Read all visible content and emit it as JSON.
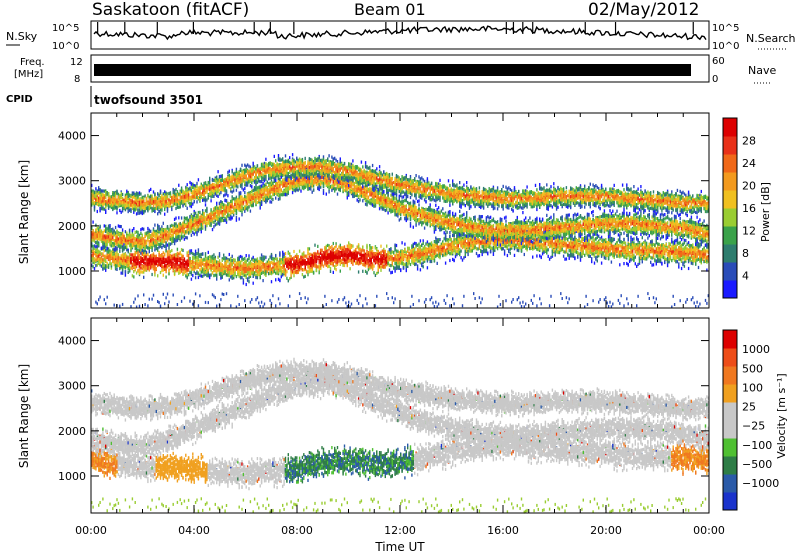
{
  "header": {
    "station_title": "Saskatoon (fitACF)",
    "beam": "Beam 01",
    "date": "02/May/2012"
  },
  "top_panels": {
    "nsky_label": "N.Sky",
    "nsky_ticks": [
      "10^5",
      "10^0"
    ],
    "nsearch_label": "N.Search",
    "nsearch_ticks": [
      "10^5",
      "10^0"
    ],
    "freq_label_1": "Freq.",
    "freq_label_2": "[MHz]",
    "freq_ticks": [
      "12",
      "8"
    ],
    "nave_label": "Nave",
    "nave_ticks": [
      "60",
      "0"
    ],
    "cpid_label": "CPID",
    "cpid_value": "twofsound 3501"
  },
  "chart_data": [
    {
      "type": "heatmap",
      "name": "power_panel",
      "ylabel": "Slant Range [km]",
      "xlabel": "",
      "y_ticks": [
        "1000",
        "2000",
        "3000",
        "4000"
      ],
      "ylim": [
        180,
        4500
      ],
      "colorbar": {
        "label": "Power [dB]",
        "ticks": [
          "4",
          "8",
          "12",
          "16",
          "20",
          "24",
          "28"
        ],
        "colors": [
          "#1a1aff",
          "#2a4cb8",
          "#2e7d6e",
          "#3aa24a",
          "#9acd32",
          "#f0c020",
          "#f39a1e",
          "#f06818",
          "#e83018",
          "#dd0000"
        ]
      },
      "bands": [
        {
          "label": "band_low",
          "x_start_h": 0.0,
          "x_end_h": 24.0,
          "center_km": [
            1350,
            1250,
            1200,
            1200,
            1150,
            1100,
            1050,
            1100,
            1150,
            1300,
            1350,
            1250,
            1300,
            1400,
            1550,
            1650,
            1700,
            1650,
            1600,
            1550,
            1500,
            1450,
            1450,
            1400,
            1350
          ]
        },
        {
          "label": "band_mid",
          "x_start_h": 0.0,
          "x_end_h": 24.0,
          "center_km": [
            1800,
            1700,
            1650,
            1800,
            2050,
            2300,
            2550,
            2800,
            3000,
            3050,
            2900,
            2650,
            2400,
            2200,
            2050,
            1950,
            1900,
            1900,
            1950,
            2000,
            2050,
            2050,
            2000,
            1950,
            1800
          ]
        },
        {
          "label": "band_high",
          "x_start_h": 0.0,
          "x_end_h": 24.0,
          "center_km": [
            2600,
            2550,
            2500,
            2550,
            2700,
            2900,
            3100,
            3250,
            3300,
            3300,
            3200,
            3050,
            2900,
            2800,
            2700,
            2650,
            2600,
            2600,
            2650,
            2650,
            2650,
            2600,
            2550,
            2500,
            2500
          ]
        }
      ]
    },
    {
      "type": "heatmap",
      "name": "velocity_panel",
      "ylabel": "Slant Range [km]",
      "xlabel": "Time UT",
      "x_ticks": [
        "00:00",
        "04:00",
        "08:00",
        "12:00",
        "16:00",
        "20:00",
        "00:00"
      ],
      "y_ticks": [
        "1000",
        "2000",
        "3000",
        "4000"
      ],
      "ylim": [
        180,
        4500
      ],
      "xlim_hours": [
        0,
        24
      ],
      "colorbar": {
        "label": "Velocity [m s⁻¹]",
        "ticks": [
          "1000",
          "500",
          "100",
          "25",
          "−25",
          "−100",
          "−500",
          "−1000"
        ],
        "colors": [
          "#1a33cc",
          "#2a5aa8",
          "#2e7d46",
          "#4fc032",
          "#c8c8c8",
          "#c8c8c8",
          "#f0a020",
          "#f07820",
          "#ee4d18",
          "#dd0000"
        ]
      }
    }
  ]
}
